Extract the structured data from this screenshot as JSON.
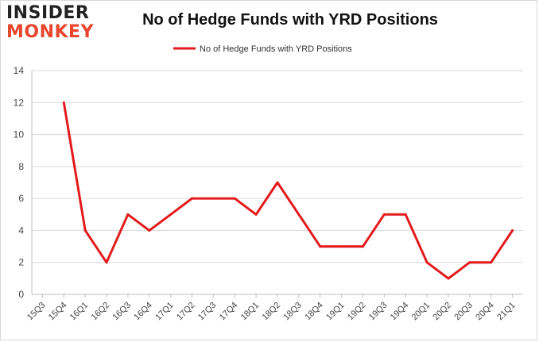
{
  "logo": {
    "line1": "INSIDER",
    "line2": "MONKEY"
  },
  "chart_data": {
    "type": "line",
    "title": "No of Hedge Funds with YRD Positions",
    "categories": [
      "15Q3",
      "15Q4",
      "16Q1",
      "16Q2",
      "16Q3",
      "16Q4",
      "17Q1",
      "17Q2",
      "17Q3",
      "17Q4",
      "18Q1",
      "18Q2",
      "18Q3",
      "18Q4",
      "19Q1",
      "19Q2",
      "19Q3",
      "19Q4",
      "20Q1",
      "20Q2",
      "20Q3",
      "20Q4",
      "21Q1"
    ],
    "series": [
      {
        "name": "No of Hedge Funds with YRD Positions",
        "color": "#e31a1c",
        "values": [
          null,
          12,
          4,
          2,
          5,
          4,
          5,
          6,
          6,
          6,
          5,
          7,
          5,
          3,
          3,
          3,
          5,
          5,
          2,
          1,
          2,
          2,
          4
        ]
      }
    ],
    "ylim": [
      0,
      14
    ],
    "yticks": [
      0,
      2,
      4,
      6,
      8,
      10,
      12,
      14
    ],
    "grid": true,
    "legend": "top-center"
  }
}
